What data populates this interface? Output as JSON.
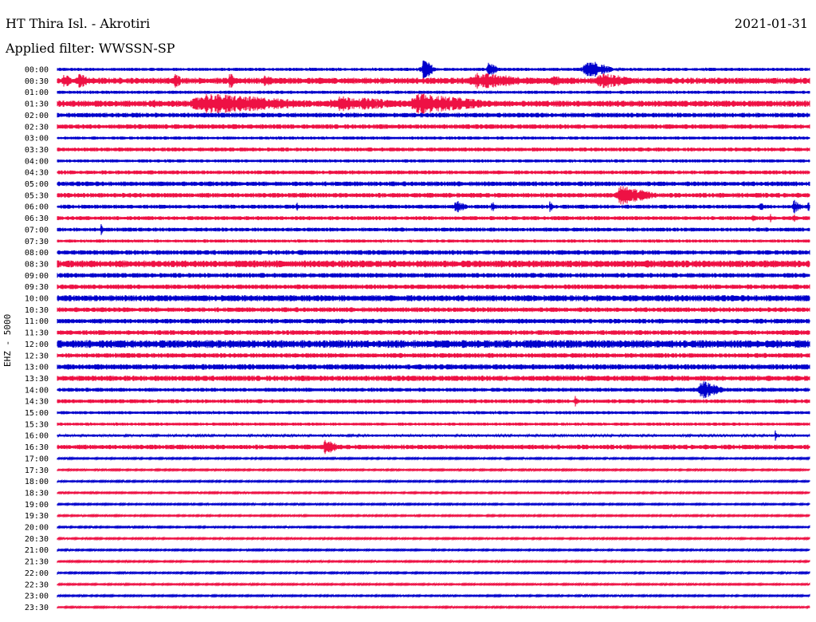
{
  "header": {
    "station": "HT Thira Isl. - Akrotiri",
    "date": "2021-01-31",
    "filter_label": "Applied filter: WWSSN-SP"
  },
  "y_label": "EHZ - 5000",
  "chart_data": {
    "type": "line",
    "title": "HT Thira Isl. - Akrotiri",
    "subtitle": "Applied filter: WWSSN-SP",
    "ylabel": "EHZ - 5000",
    "x_unit": "minutes within 30-minute trace",
    "x_range": [
      0,
      30
    ],
    "colors": {
      "odd_trace": "#0000cc",
      "even_trace": "#ee1144"
    },
    "rows": [
      {
        "label": "00:00",
        "color": "blue",
        "noise": 0.2,
        "events": [
          {
            "t": 14.5,
            "amp": 2.0,
            "dur": 0.6
          },
          {
            "t": 17.1,
            "amp": 1.6,
            "dur": 0.5
          },
          {
            "t": 20.9,
            "amp": 2.0,
            "dur": 1.3
          },
          {
            "t": 29.0,
            "amp": 0.4,
            "dur": 0.3
          }
        ]
      },
      {
        "label": "00:30",
        "color": "red",
        "noise": 0.4,
        "events": [
          {
            "t": 0.2,
            "amp": 1.8,
            "dur": 0.4
          },
          {
            "t": 0.8,
            "amp": 1.8,
            "dur": 0.5
          },
          {
            "t": 4.6,
            "amp": 1.4,
            "dur": 0.5
          },
          {
            "t": 6.8,
            "amp": 1.4,
            "dur": 0.5
          },
          {
            "t": 8.2,
            "amp": 1.4,
            "dur": 0.5
          },
          {
            "t": 16.2,
            "amp": 1.5,
            "dur": 3.5
          },
          {
            "t": 19.5,
            "amp": 0.9,
            "dur": 2.0
          },
          {
            "t": 21.4,
            "amp": 1.6,
            "dur": 1.8
          }
        ]
      },
      {
        "label": "01:00",
        "color": "blue",
        "noise": 0.2,
        "events": []
      },
      {
        "label": "01:30",
        "color": "red",
        "noise": 0.4,
        "events": [
          {
            "t": 3.7,
            "amp": 0.9,
            "dur": 0.6
          },
          {
            "t": 5.0,
            "amp": 1.9,
            "dur": 6.0
          },
          {
            "t": 10.5,
            "amp": 1.4,
            "dur": 4.5
          },
          {
            "t": 13.8,
            "amp": 1.9,
            "dur": 4.0
          }
        ]
      },
      {
        "label": "02:00",
        "color": "blue",
        "noise": 0.3,
        "events": []
      },
      {
        "label": "02:30",
        "color": "red",
        "noise": 0.3,
        "events": []
      },
      {
        "label": "03:00",
        "color": "blue",
        "noise": 0.2,
        "events": []
      },
      {
        "label": "03:30",
        "color": "red",
        "noise": 0.25,
        "events": []
      },
      {
        "label": "04:00",
        "color": "blue",
        "noise": 0.2,
        "events": []
      },
      {
        "label": "04:30",
        "color": "red",
        "noise": 0.25,
        "events": []
      },
      {
        "label": "05:00",
        "color": "blue",
        "noise": 0.3,
        "events": []
      },
      {
        "label": "05:30",
        "color": "red",
        "noise": 0.3,
        "events": [
          {
            "t": 22.2,
            "amp": 1.8,
            "dur": 1.8
          }
        ]
      },
      {
        "label": "06:00",
        "color": "blue",
        "noise": 0.25,
        "events": [
          {
            "t": 9.5,
            "amp": 1.1,
            "dur": 0.2
          },
          {
            "t": 15.8,
            "amp": 1.3,
            "dur": 0.6
          },
          {
            "t": 17.3,
            "amp": 1.1,
            "dur": 0.2
          },
          {
            "t": 19.6,
            "amp": 1.1,
            "dur": 0.2
          },
          {
            "t": 28.0,
            "amp": 1.1,
            "dur": 0.3
          },
          {
            "t": 29.3,
            "amp": 1.4,
            "dur": 0.4
          },
          {
            "t": 29.9,
            "amp": 1.1,
            "dur": 0.2
          }
        ]
      },
      {
        "label": "06:30",
        "color": "red",
        "noise": 0.25,
        "events": [
          {
            "t": 27.7,
            "amp": 1.1,
            "dur": 0.2
          },
          {
            "t": 28.4,
            "amp": 0.9,
            "dur": 0.2
          },
          {
            "t": 29.3,
            "amp": 1.1,
            "dur": 0.3
          }
        ]
      },
      {
        "label": "07:00",
        "color": "blue",
        "noise": 0.25,
        "events": [
          {
            "t": 1.7,
            "amp": 1.1,
            "dur": 0.2
          }
        ]
      },
      {
        "label": "07:30",
        "color": "red",
        "noise": 0.2,
        "events": []
      },
      {
        "label": "08:00",
        "color": "blue",
        "noise": 0.3,
        "events": [
          {
            "t": 9.5,
            "amp": 0.5,
            "dur": 1.2
          }
        ]
      },
      {
        "label": "08:30",
        "color": "red",
        "noise": 0.45,
        "events": []
      },
      {
        "label": "09:00",
        "color": "blue",
        "noise": 0.3,
        "events": []
      },
      {
        "label": "09:30",
        "color": "red",
        "noise": 0.3,
        "events": []
      },
      {
        "label": "10:00",
        "color": "blue",
        "noise": 0.4,
        "events": []
      },
      {
        "label": "10:30",
        "color": "red",
        "noise": 0.3,
        "events": []
      },
      {
        "label": "11:00",
        "color": "blue",
        "noise": 0.3,
        "events": []
      },
      {
        "label": "11:30",
        "color": "red",
        "noise": 0.3,
        "events": [
          {
            "t": 29.0,
            "amp": 0.5,
            "dur": 2.0
          }
        ]
      },
      {
        "label": "12:00",
        "color": "blue",
        "noise": 0.5,
        "events": []
      },
      {
        "label": "12:30",
        "color": "red",
        "noise": 0.3,
        "events": []
      },
      {
        "label": "13:00",
        "color": "blue",
        "noise": 0.35,
        "events": []
      },
      {
        "label": "13:30",
        "color": "red",
        "noise": 0.35,
        "events": []
      },
      {
        "label": "14:00",
        "color": "blue",
        "noise": 0.25,
        "events": [
          {
            "t": 25.5,
            "amp": 1.8,
            "dur": 1.2
          }
        ]
      },
      {
        "label": "14:30",
        "color": "red",
        "noise": 0.25,
        "events": [
          {
            "t": 20.6,
            "amp": 1.1,
            "dur": 0.2
          }
        ]
      },
      {
        "label": "15:00",
        "color": "blue",
        "noise": 0.2,
        "events": []
      },
      {
        "label": "15:30",
        "color": "red",
        "noise": 0.2,
        "events": []
      },
      {
        "label": "16:00",
        "color": "blue",
        "noise": 0.15,
        "events": [
          {
            "t": 28.6,
            "amp": 1.0,
            "dur": 0.2
          }
        ]
      },
      {
        "label": "16:30",
        "color": "red",
        "noise": 0.3,
        "events": [
          {
            "t": 10.6,
            "amp": 1.9,
            "dur": 0.6
          }
        ]
      },
      {
        "label": "17:00",
        "color": "blue",
        "noise": 0.1,
        "events": []
      },
      {
        "label": "17:30",
        "color": "red",
        "noise": 0.1,
        "events": []
      },
      {
        "label": "18:00",
        "color": "blue",
        "noise": 0.1,
        "events": []
      },
      {
        "label": "18:30",
        "color": "red",
        "noise": 0.1,
        "events": []
      },
      {
        "label": "19:00",
        "color": "blue",
        "noise": 0.1,
        "events": []
      },
      {
        "label": "19:30",
        "color": "red",
        "noise": 0.1,
        "events": []
      },
      {
        "label": "20:00",
        "color": "blue",
        "noise": 0.1,
        "events": []
      },
      {
        "label": "20:30",
        "color": "red",
        "noise": 0.1,
        "events": []
      },
      {
        "label": "21:00",
        "color": "blue",
        "noise": 0.1,
        "events": []
      },
      {
        "label": "21:30",
        "color": "red",
        "noise": 0.1,
        "events": []
      },
      {
        "label": "22:00",
        "color": "blue",
        "noise": 0.1,
        "events": []
      },
      {
        "label": "22:30",
        "color": "red",
        "noise": 0.1,
        "events": []
      },
      {
        "label": "23:00",
        "color": "blue",
        "noise": 0.1,
        "events": []
      },
      {
        "label": "23:30",
        "color": "red",
        "noise": 0.1,
        "events": []
      }
    ]
  }
}
